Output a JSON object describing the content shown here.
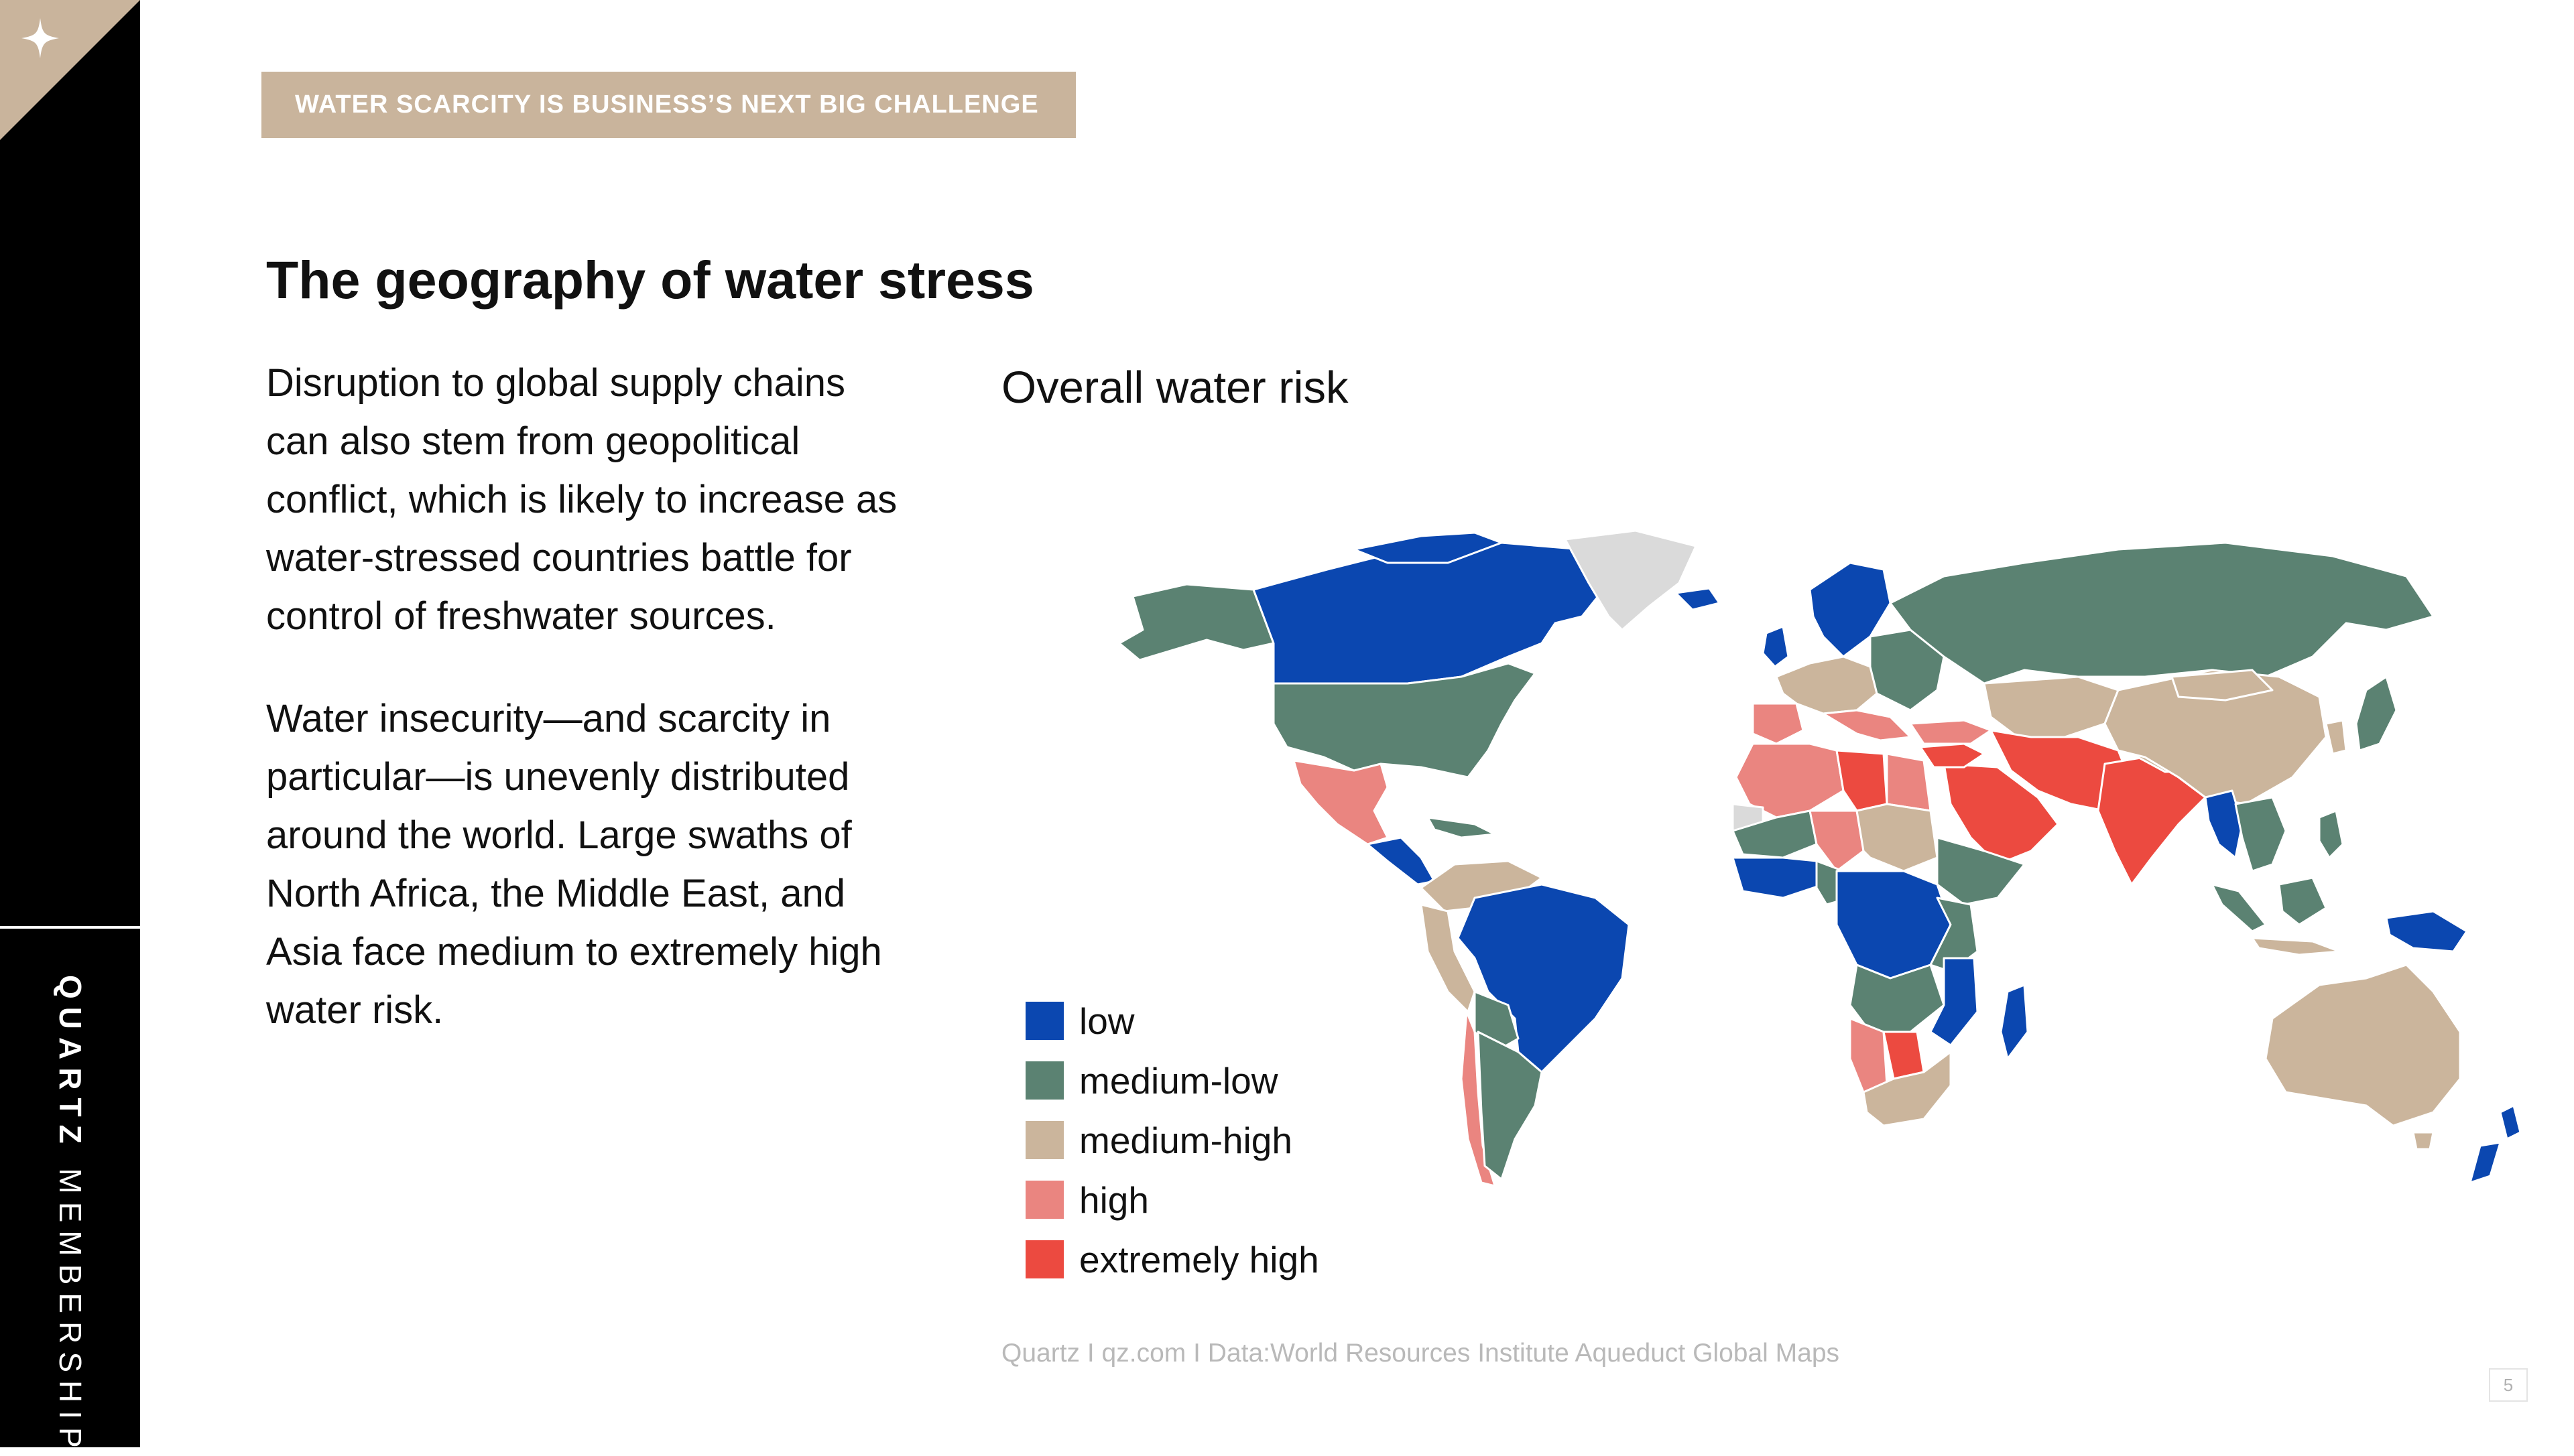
{
  "brand": {
    "name_bold": "QUARTZ",
    "name_regular": "MEMBERSHIP",
    "corner_glyph": "sparkle-icon"
  },
  "section_label": "WATER SCARCITY IS BUSINESS’S NEXT BIG CHALLENGE",
  "page_title": "The geography of water stress",
  "body": {
    "paragraph_1": "Disruption to global supply chains can also stem from geopolitical conflict, which is likely to increase as water-stressed countries battle for control of freshwater sources.",
    "paragraph_2": "Water insecurity—and scarcity in particular—is unevenly distributed around the world. Large swaths of North Africa, the Middle East, and Asia face medium to extremely high water risk."
  },
  "map": {
    "title": "Overall water risk",
    "legend": [
      {
        "label": "low",
        "color": "#0b47b0"
      },
      {
        "label": "medium-low",
        "color": "#5b8272"
      },
      {
        "label": "medium-high",
        "color": "#cbb59c"
      },
      {
        "label": "high",
        "color": "#ea8580"
      },
      {
        "label": "extremely high",
        "color": "#ec4a40"
      }
    ],
    "no_data_color": "#dadada"
  },
  "source": "Quartz I qz.com I Data:World Resources Institute Aqueduct Global Maps",
  "page_number": "5",
  "colors": {
    "rail": "#000000",
    "accent": "#c9b49c"
  }
}
